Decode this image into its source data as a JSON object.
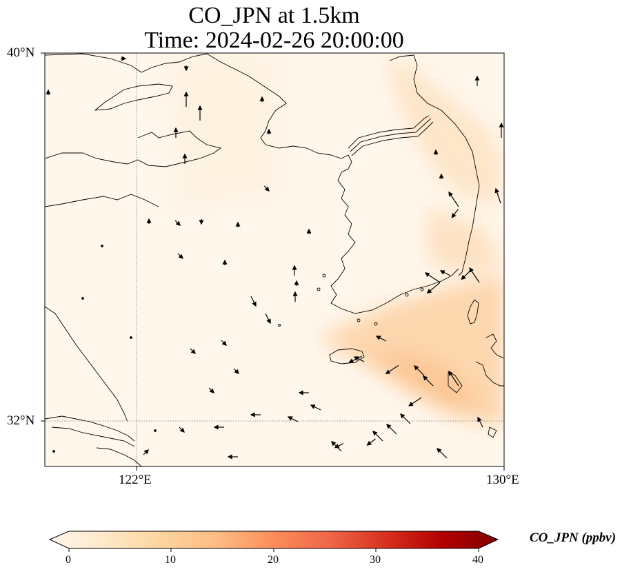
{
  "title": {
    "line1": "CO_JPN at 1.5km",
    "line2": "Time: 2024-02-26 20:00:00"
  },
  "axes": {
    "lat_labels": [
      "40°N",
      "32°N"
    ],
    "lon_labels": [
      "122°E",
      "130°E"
    ],
    "lon_range": [
      120,
      130
    ],
    "lat_range": [
      31,
      40
    ],
    "gridlines": "dotted"
  },
  "colorbar": {
    "label": "CO_JPN (ppbv)",
    "ticks": [
      "0",
      "10",
      "20",
      "30",
      "40"
    ],
    "range": [
      0,
      40
    ],
    "extend": "both",
    "colormap": "OrRd",
    "colors": [
      "#fff7ec",
      "#fee8c8",
      "#fdd49e",
      "#fdbb84",
      "#fc8d59",
      "#ef6548",
      "#d7301f",
      "#b30000",
      "#7f0000"
    ]
  },
  "map_colors": {
    "background": "#fff7ec",
    "plume": "#fdd9ad",
    "coastline": "#000000"
  },
  "chart_data": {
    "type": "heatmap",
    "variable": "CO_JPN",
    "unit": "ppbv",
    "level": "1.5km",
    "time": "2024-02-26 20:00:00",
    "plume_regions": [
      {
        "lon": [
          126.2,
          130
        ],
        "lat": [
          31.6,
          34.6
        ],
        "approx_value": 6
      },
      {
        "lon": [
          127.5,
          130
        ],
        "lat": [
          34.8,
          39.3
        ],
        "approx_value": 3
      }
    ],
    "wind_vectors": [
      {
        "lon": 126.9,
        "lat": 33.4,
        "u": -3,
        "v": -1.5
      },
      {
        "lon": 127.7,
        "lat": 33.2,
        "u": -3,
        "v": -2
      },
      {
        "lon": 128.2,
        "lat": 32.5,
        "u": -3,
        "v": -2
      },
      {
        "lon": 128.6,
        "lat": 35.0,
        "u": -3,
        "v": -2.5
      },
      {
        "lon": 129.3,
        "lat": 35.3,
        "u": -2.5,
        "v": -2.5
      },
      {
        "lon": 129.0,
        "lat": 36.6,
        "u": -1.5,
        "v": -2
      },
      {
        "lon": 127.2,
        "lat": 31.6,
        "u": -2,
        "v": -1.5
      },
      {
        "lon": 126.5,
        "lat": 31.5,
        "u": -2,
        "v": -1
      }
    ]
  }
}
